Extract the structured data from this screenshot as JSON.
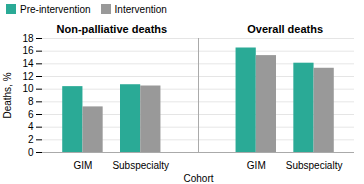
{
  "chart_data": {
    "type": "bar",
    "annotations": [
      "Non-palliative deaths",
      "Overall deaths"
    ],
    "xlabel": "Cohort",
    "ylabel": "Deaths, %",
    "categories": [
      "GIM",
      "Subspecialty",
      "GIM",
      "Subspecialty"
    ],
    "series": [
      {
        "name": "Pre-intervention",
        "color": "#2aaa96",
        "values": [
          10.4,
          10.7,
          16.5,
          14.1
        ]
      },
      {
        "name": "Intervention",
        "color": "#999999",
        "values": [
          7.2,
          10.5,
          15.3,
          13.3
        ]
      }
    ],
    "ylim": [
      0,
      18
    ],
    "yticks": [
      0,
      2,
      4,
      6,
      8,
      10,
      12,
      14,
      16,
      18
    ],
    "grid": true,
    "legend": "upper left"
  }
}
